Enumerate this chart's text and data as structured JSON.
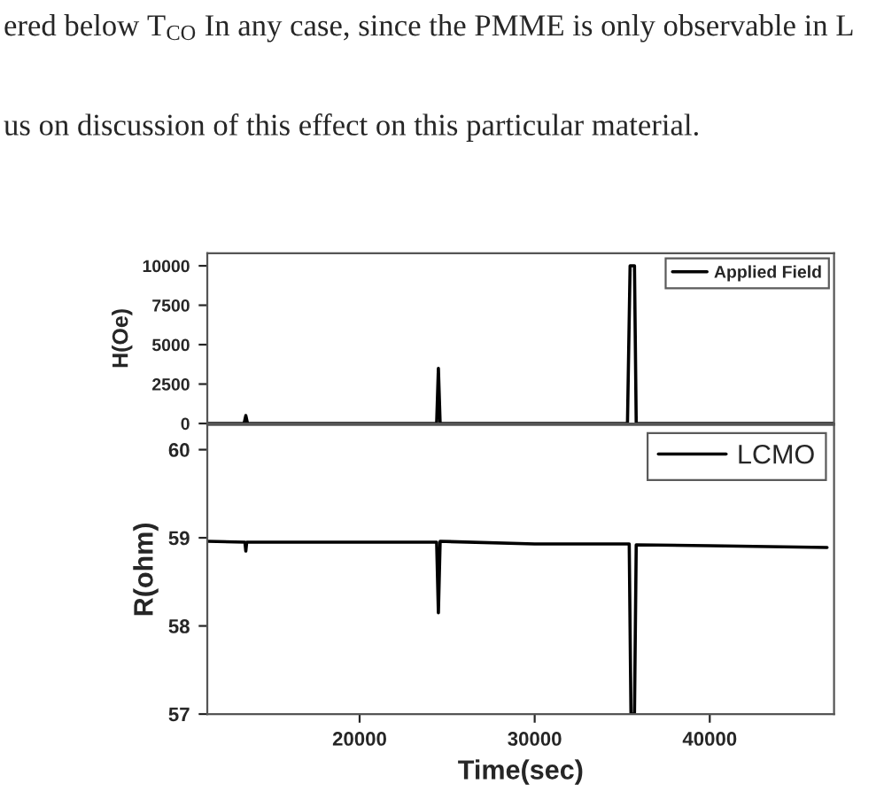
{
  "chart_data": [
    {
      "type": "line",
      "ylabel": "H(Oe)",
      "xlim": [
        11300,
        47100
      ],
      "ylim": [
        0,
        10800
      ],
      "yticks": [
        0,
        2500,
        5000,
        7500,
        10000
      ],
      "xticks": [
        20000,
        30000,
        40000
      ],
      "tick_labels": "y",
      "legend": "top right",
      "grid": false,
      "annotations": [
        "ered below T$_{CO}$ In any case, since the PMME is only observable in L",
        "us on discussion of this effect on this particular material."
      ],
      "series": [
        {
          "name": "Applied Field",
          "color": "#000000",
          "x": [
            11300,
            13400,
            13500,
            13600,
            24400,
            24500,
            24600,
            35300,
            35450,
            35700,
            35800,
            47100
          ],
          "values": [
            0,
            0,
            500,
            0,
            0,
            3500,
            0,
            0,
            10000,
            10000,
            0,
            0
          ]
        }
      ]
    },
    {
      "type": "line",
      "xlabel": "Time(sec)",
      "ylabel": "R(ohm)",
      "xlim": [
        11300,
        47100
      ],
      "ylim": [
        57,
        60.28
      ],
      "yticks": [
        57,
        58,
        59,
        60
      ],
      "xticks": [
        20000,
        30000,
        40000
      ],
      "legend": "top right",
      "grid": false,
      "series": [
        {
          "name": "LCMO",
          "color": "#000000",
          "x": [
            11300,
            13450,
            13500,
            13550,
            20000,
            24400,
            24500,
            24600,
            30000,
            35400,
            35500,
            35700,
            35800,
            40000,
            46700
          ],
          "values": [
            58.96,
            58.95,
            58.85,
            58.95,
            58.95,
            58.95,
            58.15,
            58.96,
            58.93,
            58.93,
            57.0,
            57.0,
            58.92,
            58.91,
            58.89
          ]
        }
      ]
    }
  ]
}
